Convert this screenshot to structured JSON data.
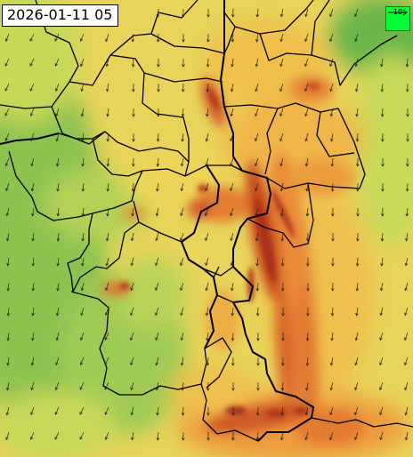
{
  "timestamp": "2026-01-11 05",
  "legend": {
    "label": "10",
    "color": "#00ff33",
    "icon": "wind-reference-arrow-icon"
  },
  "map": {
    "layer": "wind-speed-field",
    "palette": [
      "#6cb84a",
      "#a8cf55",
      "#e0e35c",
      "#f2c24e",
      "#ee9a3c",
      "#e06a2c",
      "#b8341f",
      "#8e2318"
    ],
    "vector_icon": "wind-arrow-icon",
    "boundary_color": "#000000"
  }
}
